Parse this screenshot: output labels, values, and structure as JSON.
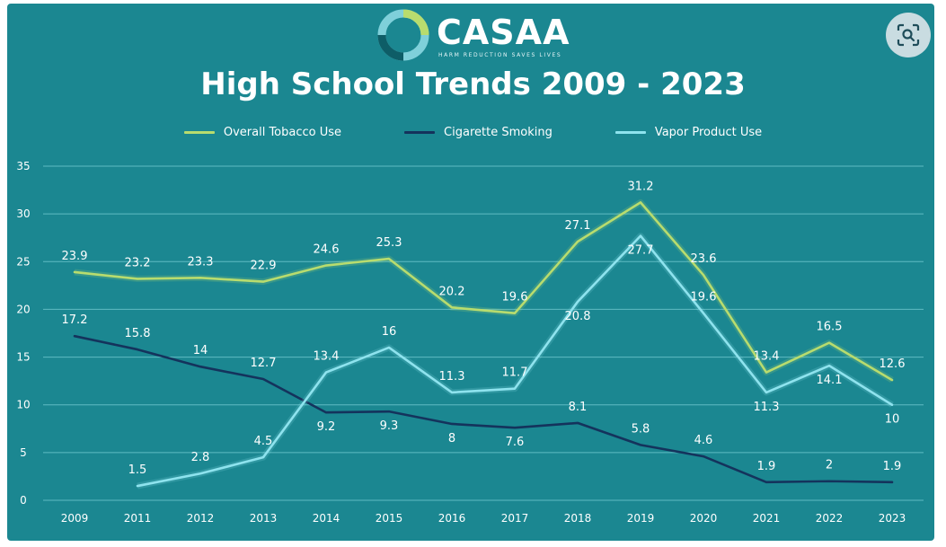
{
  "logo": {
    "text": "CASAA",
    "tagline": "HARM REDUCTION SAVES LIVES"
  },
  "colors": {
    "background": "#1b8791",
    "overall": "#b8dc6e",
    "cigarette": "#14335c",
    "vapor": "#8ee3ee",
    "grid": "#5fbbc3"
  },
  "chart_data": {
    "type": "line",
    "title": "High School Trends 2009 - 2023",
    "xlabel": "",
    "ylabel": "",
    "categories": [
      "2009",
      "2011",
      "2012",
      "2013",
      "2014",
      "2015",
      "2016",
      "2017",
      "2018",
      "2019",
      "2020",
      "2021",
      "2022",
      "2023"
    ],
    "ylim": [
      0,
      35
    ],
    "yticks": [
      0,
      5,
      10,
      15,
      20,
      25,
      30,
      35
    ],
    "grid": true,
    "legend": "top",
    "series": [
      {
        "name": "Overall Tobacco Use",
        "values": [
          23.9,
          23.2,
          23.3,
          22.9,
          24.6,
          25.3,
          20.2,
          19.6,
          27.1,
          31.2,
          23.6,
          13.4,
          16.5,
          12.6
        ]
      },
      {
        "name": "Cigarette Smoking",
        "values": [
          17.2,
          15.8,
          14,
          12.7,
          9.2,
          9.3,
          8,
          7.6,
          8.1,
          5.8,
          4.6,
          1.9,
          2,
          1.9
        ]
      },
      {
        "name": "Vapor Product Use",
        "values": [
          null,
          1.5,
          2.8,
          4.5,
          13.4,
          16,
          11.3,
          11.7,
          20.8,
          27.7,
          19.6,
          11.3,
          14.1,
          10
        ]
      }
    ]
  }
}
